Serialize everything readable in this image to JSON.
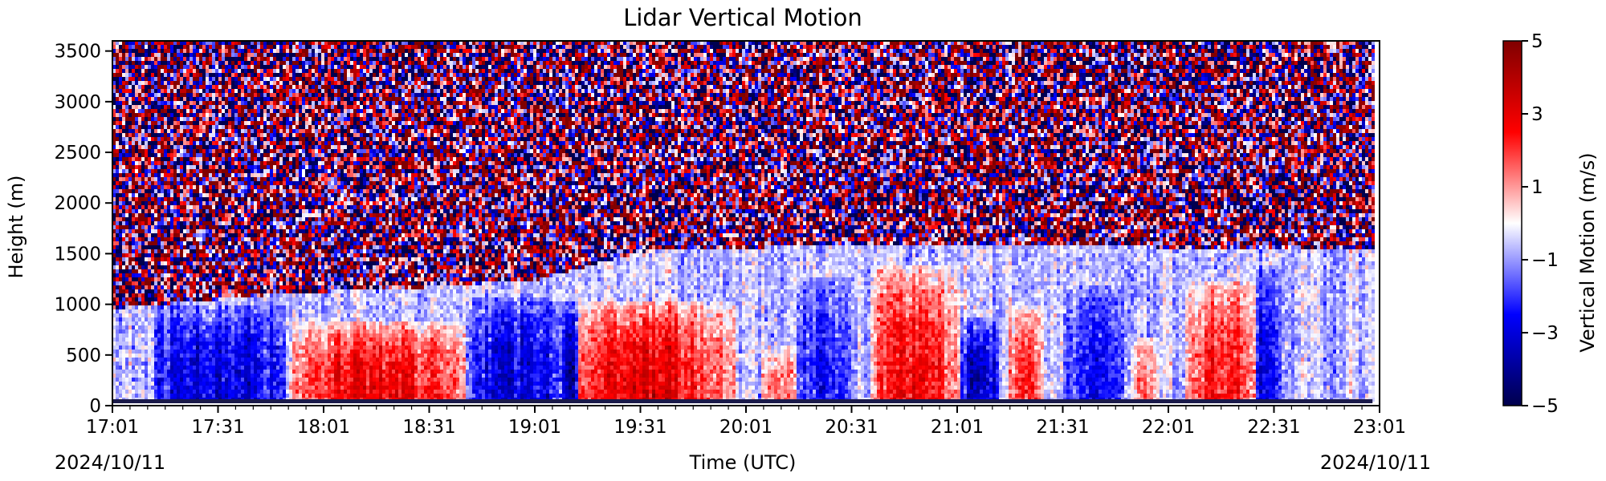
{
  "chart_data": {
    "type": "heatmap",
    "title": "Lidar Vertical Motion",
    "xlabel": "Time (UTC)",
    "ylabel": "Height (m)",
    "date_label_left": "2024/10/11",
    "date_label_right": "2024/10/11",
    "x_ticks": [
      "17:01",
      "17:31",
      "18:01",
      "18:31",
      "19:01",
      "19:31",
      "20:01",
      "20:31",
      "21:01",
      "21:31",
      "22:01",
      "22:31",
      "23:01"
    ],
    "xlim": [
      "17:01",
      "23:01"
    ],
    "y_ticks": [
      0,
      500,
      1000,
      1500,
      2000,
      2500,
      3000,
      3500
    ],
    "ylim": [
      0,
      3600
    ],
    "colorbar": {
      "label": "Vertical Motion (m/s)",
      "ticks": [
        5,
        3,
        1,
        -1,
        -3,
        -5
      ],
      "tick_labels": [
        "5",
        "3",
        "1",
        "−1",
        "−3",
        "−5"
      ],
      "range": [
        -5,
        5
      ],
      "colormap": "seismic",
      "colors": [
        "#00004c",
        "#0000ff",
        "#ffffff",
        "#ff0000",
        "#800000"
      ]
    },
    "grid": false,
    "noise_threshold_height_m": [
      {
        "time": "17:01",
        "height": 980
      },
      {
        "time": "17:51",
        "height": 1130
      },
      {
        "time": "18:31",
        "height": 1190
      },
      {
        "time": "19:01",
        "height": 1260
      },
      {
        "time": "19:31",
        "height": 1540
      },
      {
        "time": "20:01",
        "height": 1570
      },
      {
        "time": "20:21",
        "height": 1620
      },
      {
        "time": "21:31",
        "height": 1600
      },
      {
        "time": "22:31",
        "height": 1560
      },
      {
        "time": "22:59",
        "height": 1550
      }
    ],
    "updraft_cells": [
      {
        "time_start": "17:51",
        "time_end": "18:41",
        "height_max": 850,
        "velocity": 3.5
      },
      {
        "time_start": "19:08",
        "time_end": "19:58",
        "height_max": 1050,
        "velocity": 3.5
      },
      {
        "time_start": "20:05",
        "time_end": "20:15",
        "height_max": 600,
        "velocity": 2.5
      },
      {
        "time_start": "20:36",
        "time_end": "21:01",
        "height_max": 1400,
        "velocity": 3.5
      },
      {
        "time_start": "21:15",
        "time_end": "21:25",
        "height_max": 1000,
        "velocity": 3.0
      },
      {
        "time_start": "21:50",
        "time_end": "21:58",
        "height_max": 700,
        "velocity": 2.0
      },
      {
        "time_start": "22:05",
        "time_end": "22:25",
        "height_max": 1250,
        "velocity": 3.0
      }
    ],
    "downdraft_cells": [
      {
        "time_start": "17:12",
        "time_end": "17:50",
        "height_max": 1000,
        "velocity": -2.5
      },
      {
        "time_start": "18:41",
        "time_end": "19:08",
        "height_max": 1100,
        "velocity": -2.5
      },
      {
        "time_start": "19:08",
        "time_end": "19:13",
        "height_max": 1050,
        "velocity": -3.5
      },
      {
        "time_start": "20:15",
        "time_end": "20:31",
        "height_max": 1300,
        "velocity": -2.0
      },
      {
        "time_start": "21:01",
        "time_end": "21:12",
        "height_max": 900,
        "velocity": -3.0
      },
      {
        "time_start": "21:31",
        "time_end": "21:48",
        "height_max": 1200,
        "velocity": -2.0
      },
      {
        "time_start": "22:25",
        "time_end": "22:33",
        "height_max": 1400,
        "velocity": -2.5
      }
    ]
  }
}
